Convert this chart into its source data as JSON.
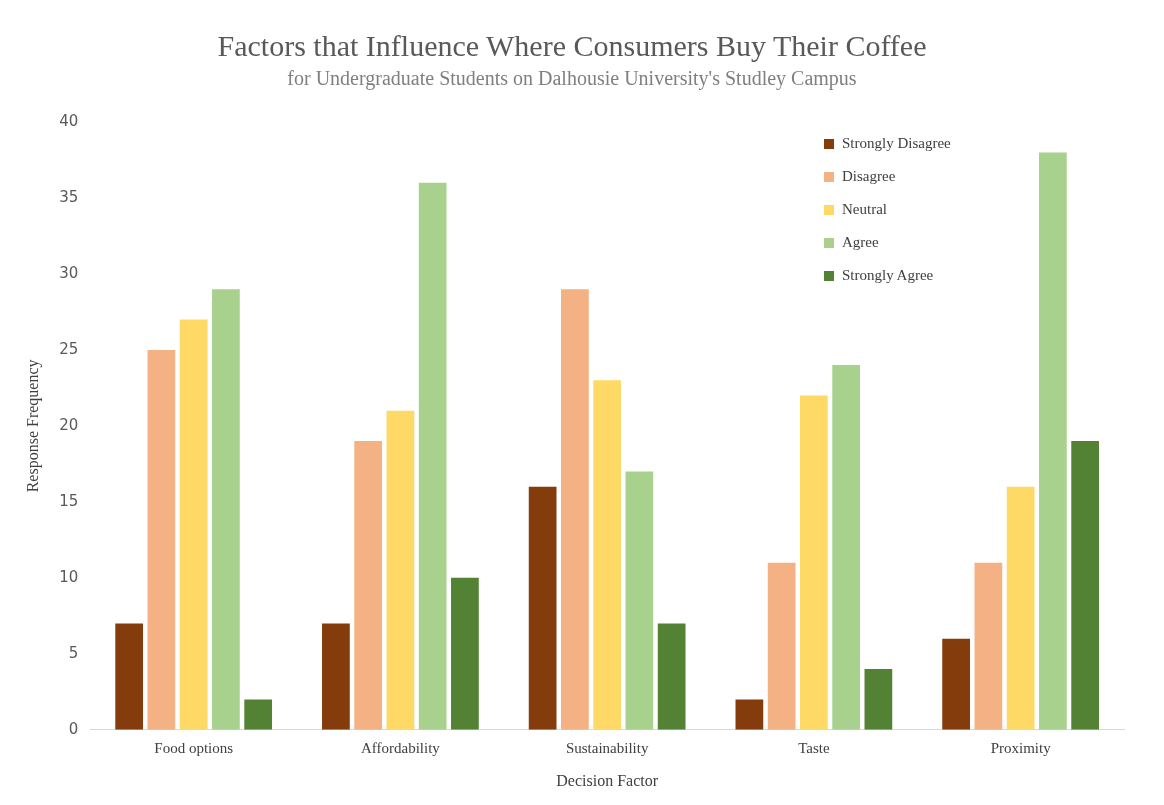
{
  "chart_data": {
    "type": "bar",
    "title": "Factors that Influence Where Consumers Buy Their Coffee",
    "subtitle": "for Undergraduate Students on Dalhousie University's Studley Campus",
    "xlabel": "Decision Factor",
    "ylabel": "Response Frequency",
    "categories": [
      "Food options",
      "Affordability",
      "Sustainability",
      "Taste",
      "Proximity"
    ],
    "series": [
      {
        "name": "Strongly Disagree",
        "color": "#843c0c",
        "values": [
          7,
          7,
          16,
          2,
          6
        ]
      },
      {
        "name": "Disagree",
        "color": "#f4b183",
        "values": [
          25,
          19,
          29,
          11,
          11
        ]
      },
      {
        "name": "Neutral",
        "color": "#ffd966",
        "values": [
          27,
          21,
          23,
          22,
          16
        ]
      },
      {
        "name": "Agree",
        "color": "#a9d18e",
        "values": [
          29,
          36,
          17,
          24,
          38
        ]
      },
      {
        "name": "Strongly Agree",
        "color": "#548235",
        "values": [
          2,
          10,
          7,
          4,
          19
        ]
      }
    ],
    "ylim": [
      0,
      40
    ],
    "yticks": [
      0,
      5,
      10,
      15,
      20,
      25,
      30,
      35,
      40
    ],
    "grid": false,
    "legend": "top right"
  }
}
